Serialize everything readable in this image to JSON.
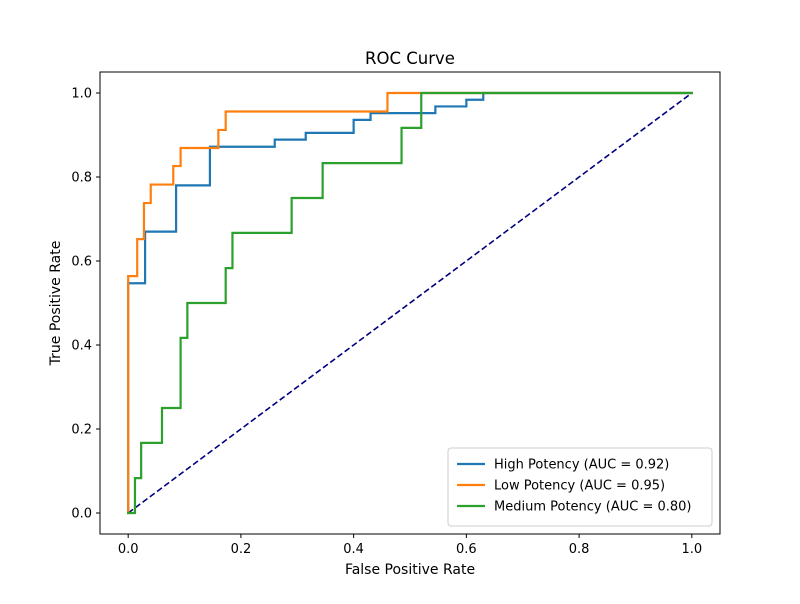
{
  "chart_data": {
    "type": "line",
    "title": "ROC Curve",
    "xlabel": "False Positive Rate",
    "ylabel": "True Positive Rate",
    "xlim": [
      -0.05,
      1.05
    ],
    "ylim": [
      -0.05,
      1.05
    ],
    "xticks": [
      0.0,
      0.2,
      0.4,
      0.6,
      0.8,
      1.0
    ],
    "yticks": [
      0.0,
      0.2,
      0.4,
      0.6,
      0.8,
      1.0
    ],
    "xtick_labels": [
      "0.0",
      "0.2",
      "0.4",
      "0.6",
      "0.8",
      "1.0"
    ],
    "ytick_labels": [
      "0.0",
      "0.2",
      "0.4",
      "0.6",
      "0.8",
      "1.0"
    ],
    "grid": false,
    "legend_position": "lower right",
    "series": [
      {
        "name": "High Potency (AUC = 0.92)",
        "color": "#1f77b4",
        "x": [
          0.0,
          0.0,
          0.03,
          0.03,
          0.085,
          0.085,
          0.145,
          0.145,
          0.26,
          0.26,
          0.315,
          0.315,
          0.4,
          0.4,
          0.43,
          0.43,
          0.545,
          0.545,
          0.6,
          0.6,
          0.63,
          0.63,
          1.0
        ],
        "y": [
          0.0,
          0.547,
          0.547,
          0.67,
          0.67,
          0.78,
          0.78,
          0.872,
          0.872,
          0.889,
          0.889,
          0.905,
          0.905,
          0.936,
          0.936,
          0.952,
          0.952,
          0.968,
          0.968,
          0.984,
          0.984,
          1.0,
          1.0
        ]
      },
      {
        "name": "Low Potency (AUC = 0.95)",
        "color": "#ff7f0e",
        "x": [
          0.0,
          0.0,
          0.016,
          0.016,
          0.028,
          0.028,
          0.04,
          0.04,
          0.08,
          0.08,
          0.093,
          0.093,
          0.16,
          0.16,
          0.173,
          0.173,
          0.46,
          0.46,
          1.0
        ],
        "y": [
          0.0,
          0.564,
          0.564,
          0.652,
          0.652,
          0.738,
          0.738,
          0.782,
          0.782,
          0.826,
          0.826,
          0.869,
          0.869,
          0.912,
          0.912,
          0.956,
          0.956,
          1.0,
          1.0
        ]
      },
      {
        "name": "Medium Potency (AUC = 0.80)",
        "color": "#2ca02c",
        "x": [
          0.0,
          0.012,
          0.012,
          0.023,
          0.023,
          0.06,
          0.06,
          0.093,
          0.093,
          0.105,
          0.105,
          0.173,
          0.173,
          0.185,
          0.185,
          0.29,
          0.29,
          0.345,
          0.345,
          0.485,
          0.485,
          0.52,
          0.52,
          1.0
        ],
        "y": [
          0.0,
          0.0,
          0.083,
          0.083,
          0.167,
          0.167,
          0.25,
          0.25,
          0.417,
          0.417,
          0.5,
          0.5,
          0.583,
          0.583,
          0.667,
          0.667,
          0.75,
          0.75,
          0.833,
          0.833,
          0.917,
          0.917,
          1.0,
          1.0
        ]
      }
    ],
    "reference_line": {
      "x": [
        0.0,
        1.0
      ],
      "y": [
        0.0,
        1.0
      ],
      "color": "#000080",
      "style": "dashed"
    }
  }
}
